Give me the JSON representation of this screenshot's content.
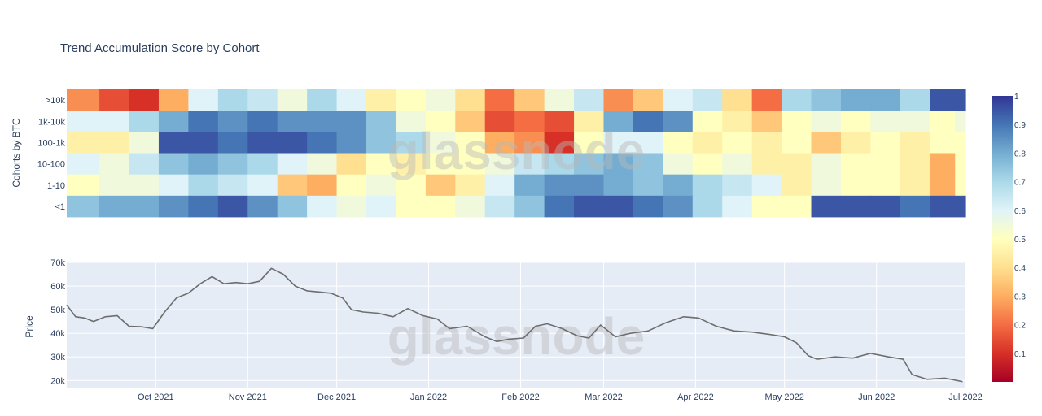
{
  "title": "Trend Accumulation Score by Cohort",
  "watermark": "glassnode",
  "colors": {
    "scale": [
      "#a50026",
      "#d73027",
      "#f46d43",
      "#fdae61",
      "#fee090",
      "#ffffbf",
      "#e0f3f8",
      "#abd9e9",
      "#74add1",
      "#4575b4",
      "#313695"
    ],
    "price_line": "#6e6e6e",
    "plot_bg": "#e5ecf6",
    "axis_text": "#2a3f5f"
  },
  "chart_data": [
    {
      "type": "heatmap",
      "ylabel": "Cohorts by BTC",
      "categories": [
        ">10k",
        "1k-10k",
        "100-1k",
        "10-100",
        "1-10",
        "<1"
      ],
      "colorbar": {
        "range": [
          0,
          1
        ],
        "ticks": [
          "0.1",
          "0.2",
          "0.3",
          "0.4",
          "0.5",
          "0.6",
          "0.7",
          "0.8",
          "0.9",
          "1"
        ]
      },
      "x": [
        "2021-09-07",
        "2021-09-17",
        "2021-09-27",
        "2021-10-07",
        "2021-10-17",
        "2021-10-27",
        "2021-11-06",
        "2021-11-16",
        "2021-11-26",
        "2021-12-06",
        "2021-12-16",
        "2021-12-26",
        "2022-01-05",
        "2022-01-15",
        "2022-01-25",
        "2022-02-04",
        "2022-02-14",
        "2022-02-24",
        "2022-03-06",
        "2022-03-16",
        "2022-03-26",
        "2022-04-05",
        "2022-04-15",
        "2022-04-25",
        "2022-05-05",
        "2022-05-15",
        "2022-05-25",
        "2022-06-04",
        "2022-06-14",
        "2022-06-24",
        "2022-07-01"
      ],
      "z": [
        [
          0.25,
          0.15,
          0.1,
          0.3,
          0.6,
          0.7,
          0.65,
          0.55,
          0.7,
          0.6,
          0.45,
          0.5,
          0.55,
          0.4,
          0.2,
          0.35,
          0.55,
          0.65,
          0.25,
          0.35,
          0.6,
          0.65,
          0.4,
          0.2,
          0.7,
          0.75,
          0.8,
          0.8,
          0.7,
          0.95,
          0.95
        ],
        [
          0.6,
          0.6,
          0.7,
          0.8,
          0.9,
          0.85,
          0.9,
          0.85,
          0.85,
          0.85,
          0.75,
          0.55,
          0.5,
          0.35,
          0.15,
          0.2,
          0.15,
          0.45,
          0.8,
          0.9,
          0.85,
          0.5,
          0.45,
          0.35,
          0.5,
          0.55,
          0.5,
          0.55,
          0.55,
          0.5,
          0.55
        ],
        [
          0.45,
          0.45,
          0.55,
          0.95,
          0.95,
          0.9,
          0.95,
          0.95,
          0.9,
          0.85,
          0.75,
          0.7,
          0.55,
          0.5,
          0.3,
          0.25,
          0.1,
          0.5,
          0.6,
          0.6,
          0.5,
          0.45,
          0.5,
          0.45,
          0.5,
          0.35,
          0.45,
          0.5,
          0.45,
          0.5,
          0.5
        ],
        [
          0.6,
          0.55,
          0.65,
          0.75,
          0.8,
          0.75,
          0.7,
          0.6,
          0.55,
          0.4,
          0.5,
          0.45,
          0.5,
          0.5,
          0.55,
          0.65,
          0.7,
          0.75,
          0.8,
          0.75,
          0.55,
          0.5,
          0.55,
          0.45,
          0.45,
          0.55,
          0.5,
          0.5,
          0.45,
          0.3,
          0.5
        ],
        [
          0.5,
          0.55,
          0.55,
          0.6,
          0.7,
          0.65,
          0.6,
          0.35,
          0.3,
          0.5,
          0.55,
          0.5,
          0.35,
          0.45,
          0.6,
          0.8,
          0.85,
          0.85,
          0.8,
          0.75,
          0.8,
          0.7,
          0.65,
          0.6,
          0.45,
          0.55,
          0.5,
          0.5,
          0.45,
          0.3,
          0.5
        ],
        [
          0.75,
          0.8,
          0.8,
          0.85,
          0.9,
          0.95,
          0.85,
          0.75,
          0.6,
          0.55,
          0.6,
          0.5,
          0.5,
          0.55,
          0.65,
          0.75,
          0.9,
          0.95,
          0.95,
          0.9,
          0.85,
          0.7,
          0.6,
          0.5,
          0.5,
          0.95,
          0.95,
          0.95,
          0.9,
          0.95,
          0.95
        ]
      ]
    },
    {
      "type": "line",
      "ylabel": "Price",
      "xlim": [
        "2021-09-01",
        "2022-07-01"
      ],
      "ylim": [
        17000,
        70000
      ],
      "y_ticks": [
        "20k",
        "30k",
        "40k",
        "50k",
        "60k",
        "70k"
      ],
      "y_tick_values": [
        20000,
        30000,
        40000,
        50000,
        60000,
        70000
      ],
      "x_tick_labels": [
        "Oct 2021",
        "Nov 2021",
        "Dec 2021",
        "Jan 2022",
        "Feb 2022",
        "Mar 2022",
        "Apr 2022",
        "May 2022",
        "Jun 2022",
        "Jul 2022"
      ],
      "x_tick_dates": [
        "2021-10-01",
        "2021-11-01",
        "2021-12-01",
        "2022-01-01",
        "2022-02-01",
        "2022-03-01",
        "2022-04-01",
        "2022-05-01",
        "2022-06-01",
        "2022-07-01"
      ],
      "x": [
        "2021-09-01",
        "2021-09-04",
        "2021-09-07",
        "2021-09-10",
        "2021-09-14",
        "2021-09-18",
        "2021-09-22",
        "2021-09-26",
        "2021-09-30",
        "2021-10-04",
        "2021-10-08",
        "2021-10-12",
        "2021-10-16",
        "2021-10-20",
        "2021-10-24",
        "2021-10-28",
        "2021-11-01",
        "2021-11-05",
        "2021-11-09",
        "2021-11-13",
        "2021-11-17",
        "2021-11-21",
        "2021-11-25",
        "2021-11-29",
        "2021-12-03",
        "2021-12-06",
        "2021-12-10",
        "2021-12-15",
        "2021-12-20",
        "2021-12-25",
        "2021-12-30",
        "2022-01-04",
        "2022-01-08",
        "2022-01-14",
        "2022-01-20",
        "2022-01-24",
        "2022-01-28",
        "2022-02-02",
        "2022-02-06",
        "2022-02-10",
        "2022-02-15",
        "2022-02-20",
        "2022-02-24",
        "2022-02-28",
        "2022-03-05",
        "2022-03-10",
        "2022-03-16",
        "2022-03-22",
        "2022-03-28",
        "2022-04-02",
        "2022-04-08",
        "2022-04-14",
        "2022-04-20",
        "2022-04-26",
        "2022-05-01",
        "2022-05-05",
        "2022-05-09",
        "2022-05-12",
        "2022-05-18",
        "2022-05-24",
        "2022-05-30",
        "2022-06-05",
        "2022-06-10",
        "2022-06-13",
        "2022-06-18",
        "2022-06-24",
        "2022-06-30"
      ],
      "y": [
        52000,
        47000,
        46500,
        45000,
        47000,
        47500,
        43000,
        42800,
        42000,
        49000,
        55000,
        57000,
        61000,
        64000,
        61000,
        61500,
        61000,
        62000,
        67500,
        65000,
        60000,
        58000,
        57500,
        57000,
        55000,
        50000,
        49000,
        48500,
        47000,
        50500,
        47500,
        46000,
        42000,
        43000,
        38500,
        36500,
        37500,
        38000,
        43000,
        44000,
        42000,
        39000,
        38000,
        43500,
        38500,
        40000,
        41000,
        44500,
        47000,
        46500,
        43000,
        41000,
        40500,
        39500,
        38500,
        36000,
        30500,
        29000,
        30000,
        29500,
        31500,
        30000,
        29000,
        22500,
        20500,
        21000,
        19500
      ]
    }
  ]
}
